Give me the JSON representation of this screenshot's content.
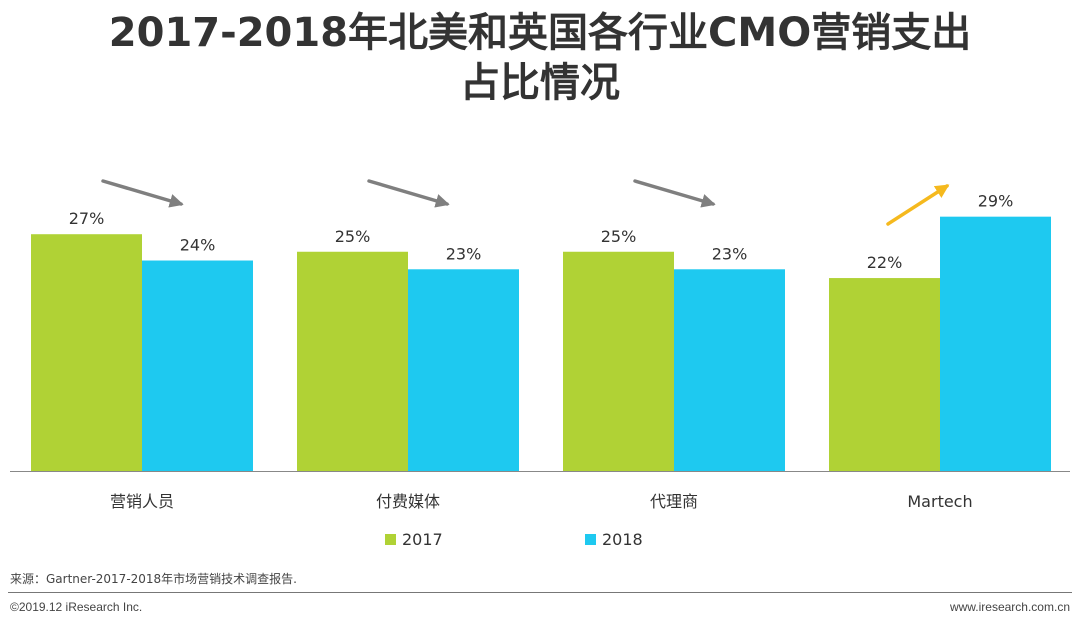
{
  "title_line1": "2017-2018年北美和英国各行业CMO营销支出",
  "title_line2": "占比情况",
  "chart_data": {
    "type": "bar",
    "title": "2017-2018年北美和英国各行业CMO营销支出占比情况",
    "categories": [
      "营销人员",
      "付费媒体",
      "代理商",
      "Martech"
    ],
    "series": [
      {
        "name": "2017",
        "values": [
          27,
          25,
          25,
          22
        ],
        "labels": [
          "27%",
          "25%",
          "25%",
          "22%"
        ],
        "color": "#b0d235"
      },
      {
        "name": "2018",
        "values": [
          24,
          23,
          23,
          29
        ],
        "labels": [
          "24%",
          "23%",
          "23%",
          "29%"
        ],
        "color": "#1ec9f0"
      }
    ],
    "ylim": [
      0,
      34
    ],
    "xlabel": "",
    "ylabel": "",
    "legend_position": "bottom",
    "trend_arrows": [
      "down",
      "down",
      "down",
      "up"
    ],
    "arrow_colors": {
      "down": "#7f7f7f",
      "up": "#f5b91e"
    }
  },
  "source": "来源：Gartner-2017-2018年市场营销技术调查报告.",
  "footer": {
    "copyright": "©2019.12 iResearch Inc.",
    "website": "www.iresearch.com.cn"
  }
}
